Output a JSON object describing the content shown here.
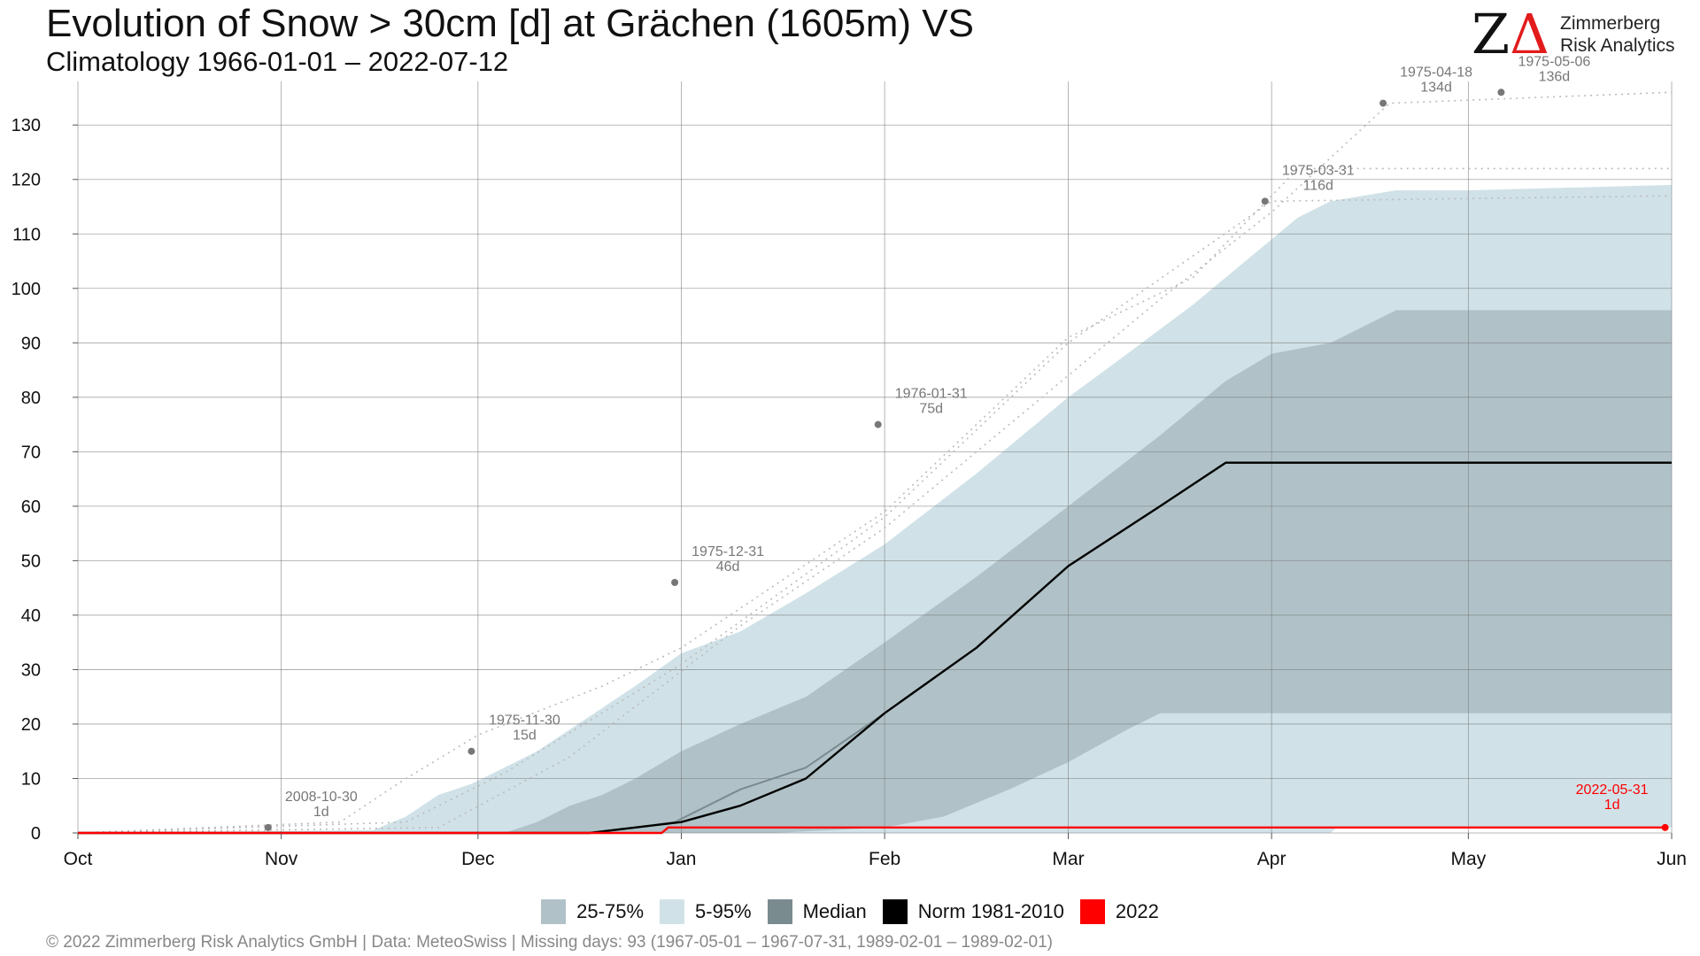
{
  "header": {
    "title": "Evolution of Snow > 30cm [d] at Grächen (1605m) VS",
    "subtitle": "Climatology 1966-01-01 – 2022-07-12"
  },
  "logo": {
    "mark_z": "Z",
    "mark_a": "Δ",
    "line1": "Zimmerberg",
    "line2": "Risk Analytics"
  },
  "footer": {
    "text": "©  2022 Zimmerberg Risk Analytics GmbH | Data: MeteoSwiss | Missing days: 93 (1967-05-01 – 1967-07-31, 1989-02-01 – 1989-02-01)"
  },
  "legend": [
    {
      "label": "25-75%",
      "color": "#b0c2c8"
    },
    {
      "label": "5-95%",
      "color": "#d0e2e8"
    },
    {
      "label": "Median",
      "color": "#7a8b90"
    },
    {
      "label": "Norm 1981-2010",
      "color": "#000000"
    },
    {
      "label": "2022",
      "color": "#ff0000"
    }
  ],
  "chart_data": {
    "type": "area",
    "x_axis": {
      "type": "date",
      "range": [
        "2021-10-01",
        "2022-06-01"
      ],
      "ticks": [
        {
          "label": "Oct",
          "date": "2021-10-01"
        },
        {
          "label": "Nov",
          "date": "2021-11-01"
        },
        {
          "label": "Dec",
          "date": "2021-12-01"
        },
        {
          "label": "Jan",
          "date": "2022-01-01"
        },
        {
          "label": "Feb",
          "date": "2022-02-01"
        },
        {
          "label": "Mar",
          "date": "2022-03-01"
        },
        {
          "label": "Apr",
          "date": "2022-04-01"
        },
        {
          "label": "May",
          "date": "2022-05-01"
        },
        {
          "label": "Jun",
          "date": "2022-06-01"
        }
      ]
    },
    "y_axis": {
      "range": [
        0,
        138
      ],
      "ticks": [
        0,
        10,
        20,
        30,
        40,
        50,
        60,
        70,
        80,
        90,
        100,
        110,
        120,
        130
      ]
    },
    "grid": true,
    "legend_position": "bottom",
    "bands": [
      {
        "name": "5-95%",
        "color": "#d0e2e8",
        "upper": [
          [
            "2021-10-01",
            0
          ],
          [
            "2021-11-15",
            0.5
          ],
          [
            "2021-11-20",
            3
          ],
          [
            "2021-11-25",
            7
          ],
          [
            "2021-11-30",
            9
          ],
          [
            "2021-12-05",
            12
          ],
          [
            "2021-12-10",
            15
          ],
          [
            "2021-12-15",
            19
          ],
          [
            "2021-12-20",
            23
          ],
          [
            "2021-12-25",
            27
          ],
          [
            "2022-01-01",
            33
          ],
          [
            "2022-01-10",
            37
          ],
          [
            "2022-01-20",
            44
          ],
          [
            "2022-02-01",
            53
          ],
          [
            "2022-02-15",
            66
          ],
          [
            "2022-03-01",
            80
          ],
          [
            "2022-03-10",
            88
          ],
          [
            "2022-03-20",
            97
          ],
          [
            "2022-03-31",
            108
          ],
          [
            "2022-04-05",
            113
          ],
          [
            "2022-04-10",
            116
          ],
          [
            "2022-04-20",
            118
          ],
          [
            "2022-05-01",
            118
          ],
          [
            "2022-06-01",
            119
          ]
        ],
        "lower": [
          [
            "2021-10-01",
            0
          ],
          [
            "2022-04-10",
            0
          ],
          [
            "2022-04-11",
            1
          ],
          [
            "2022-06-01",
            1
          ]
        ]
      },
      {
        "name": "25-75%",
        "color": "#b0c2c8",
        "upper": [
          [
            "2021-10-01",
            0
          ],
          [
            "2021-12-05",
            0
          ],
          [
            "2021-12-10",
            2
          ],
          [
            "2021-12-15",
            5
          ],
          [
            "2021-12-20",
            7
          ],
          [
            "2021-12-25",
            10
          ],
          [
            "2022-01-01",
            15
          ],
          [
            "2022-01-10",
            20
          ],
          [
            "2022-01-20",
            25
          ],
          [
            "2022-02-01",
            35
          ],
          [
            "2022-02-15",
            47
          ],
          [
            "2022-03-01",
            60
          ],
          [
            "2022-03-15",
            73
          ],
          [
            "2022-03-25",
            83
          ],
          [
            "2022-04-01",
            88
          ],
          [
            "2022-04-10",
            90
          ],
          [
            "2022-04-20",
            96
          ],
          [
            "2022-06-01",
            96
          ]
        ],
        "lower": [
          [
            "2021-10-01",
            0
          ],
          [
            "2022-01-15",
            0
          ],
          [
            "2022-02-01",
            1
          ],
          [
            "2022-02-10",
            3
          ],
          [
            "2022-02-20",
            8
          ],
          [
            "2022-03-01",
            13
          ],
          [
            "2022-03-10",
            19
          ],
          [
            "2022-03-15",
            22
          ],
          [
            "2022-06-01",
            22
          ]
        ]
      }
    ],
    "series": [
      {
        "name": "Median",
        "color": "#7a8b90",
        "points": [
          [
            "2021-10-01",
            0
          ],
          [
            "2021-12-18",
            0
          ],
          [
            "2021-12-25",
            1
          ],
          [
            "2021-12-31",
            2
          ],
          [
            "2022-01-10",
            8
          ],
          [
            "2022-01-20",
            12
          ],
          [
            "2022-02-01",
            22
          ],
          [
            "2022-02-15",
            34
          ],
          [
            "2022-03-01",
            49
          ],
          [
            "2022-03-15",
            60
          ],
          [
            "2022-03-25",
            68
          ],
          [
            "2022-06-01",
            68
          ]
        ]
      },
      {
        "name": "Norm 1981-2010",
        "color": "#000000",
        "points": [
          [
            "2021-10-01",
            0
          ],
          [
            "2021-12-18",
            0
          ],
          [
            "2021-12-25",
            1
          ],
          [
            "2022-01-01",
            2
          ],
          [
            "2022-01-10",
            5
          ],
          [
            "2022-01-20",
            10
          ],
          [
            "2022-02-01",
            22
          ],
          [
            "2022-02-15",
            34
          ],
          [
            "2022-03-01",
            49
          ],
          [
            "2022-03-15",
            60
          ],
          [
            "2022-03-25",
            68
          ],
          [
            "2022-06-01",
            68
          ]
        ]
      },
      {
        "name": "2022",
        "color": "#ff0000",
        "points": [
          [
            "2021-10-01",
            0
          ],
          [
            "2021-12-29",
            0
          ],
          [
            "2021-12-30",
            1
          ],
          [
            "2022-05-31",
            1
          ]
        ]
      }
    ],
    "record_traces": [
      [
        [
          "2021-10-01",
          0
        ],
        [
          "2021-11-10",
          2
        ],
        [
          "2021-11-20",
          10
        ],
        [
          "2021-12-01",
          18
        ],
        [
          "2021-12-20",
          27
        ],
        [
          "2022-01-01",
          34
        ],
        [
          "2022-02-01",
          59
        ],
        [
          "2022-03-01",
          91
        ],
        [
          "2022-03-20",
          102
        ],
        [
          "2022-04-05",
          122
        ],
        [
          "2022-06-01",
          122
        ]
      ],
      [
        [
          "2021-10-01",
          0
        ],
        [
          "2021-11-20",
          2
        ],
        [
          "2021-12-05",
          11
        ],
        [
          "2022-01-01",
          31
        ],
        [
          "2022-02-01",
          58
        ],
        [
          "2022-03-01",
          90
        ],
        [
          "2022-04-01",
          116
        ],
        [
          "2022-06-01",
          117
        ]
      ],
      [
        [
          "2021-10-01",
          0
        ],
        [
          "2021-11-25",
          1
        ],
        [
          "2021-12-15",
          14
        ],
        [
          "2022-01-10",
          38
        ],
        [
          "2022-02-01",
          56
        ],
        [
          "2022-03-01",
          84
        ],
        [
          "2022-03-15",
          98
        ],
        [
          "2022-04-01",
          114
        ],
        [
          "2022-04-19",
          134
        ],
        [
          "2022-06-01",
          136
        ]
      ]
    ],
    "record_color": "#bbbbbb",
    "annotations": [
      {
        "date": "2021-10-30",
        "value": 1,
        "label": "2008-10-30",
        "sub": "1d",
        "color": "#777777"
      },
      {
        "date": "2021-11-30",
        "value": 15,
        "label": "1975-11-30",
        "sub": "15d",
        "color": "#777777"
      },
      {
        "date": "2021-12-31",
        "value": 46,
        "label": "1975-12-31",
        "sub": "46d",
        "color": "#777777"
      },
      {
        "date": "2022-01-31",
        "value": 75,
        "label": "1976-01-31",
        "sub": "75d",
        "color": "#777777"
      },
      {
        "date": "2022-03-31",
        "value": 116,
        "label": "1975-03-31",
        "sub": "116d",
        "color": "#777777"
      },
      {
        "date": "2022-04-18",
        "value": 134,
        "label": "1975-04-18",
        "sub": "134d",
        "color": "#777777"
      },
      {
        "date": "2022-05-06",
        "value": 136,
        "label": "1975-05-06",
        "sub": "136d",
        "color": "#777777"
      },
      {
        "date": "2022-05-31",
        "value": 1,
        "label": "2022-05-31",
        "sub": "1d",
        "color": "#ff0000"
      }
    ]
  }
}
